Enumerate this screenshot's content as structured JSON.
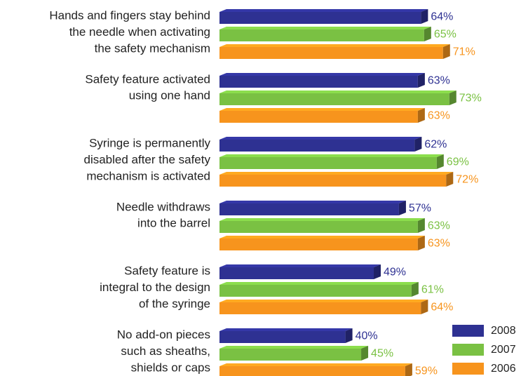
{
  "chart_data": {
    "type": "bar",
    "orientation": "horizontal",
    "categories": [
      [
        "Hands and fingers stay behind",
        "the needle when activating",
        "the safety mechanism"
      ],
      [
        "Safety feature activated",
        "using one hand"
      ],
      [
        "Syringe is permanently",
        "disabled after the safety",
        "mechanism is activated"
      ],
      [
        "Needle withdraws",
        "into the barrel"
      ],
      [
        "Safety feature is",
        "integral to the design",
        "of the syringe"
      ],
      [
        "No add-on pieces",
        "such as sheaths,",
        "shields or caps"
      ]
    ],
    "series": [
      {
        "name": "2008",
        "color": "#2e3192",
        "label_color": "#2e3192",
        "values": [
          64,
          63,
          62,
          57,
          49,
          40
        ],
        "value_labels": [
          "64%",
          "63%",
          "62%",
          "57%",
          "49%",
          "40%"
        ]
      },
      {
        "name": "2007",
        "color": "#7ac143",
        "label_color": "#7ac143",
        "values": [
          65,
          73,
          69,
          63,
          61,
          45
        ],
        "value_labels": [
          "65%",
          "73%",
          "69%",
          "63%",
          "61%",
          "45%"
        ]
      },
      {
        "name": "2006",
        "color": "#f7941d",
        "label_color": "#f7941d",
        "values": [
          71,
          63,
          72,
          63,
          64,
          59
        ],
        "value_labels": [
          "71%",
          "63%",
          "72%",
          "63%",
          "64%",
          "59%"
        ]
      }
    ],
    "legend": "bottom-right"
  }
}
